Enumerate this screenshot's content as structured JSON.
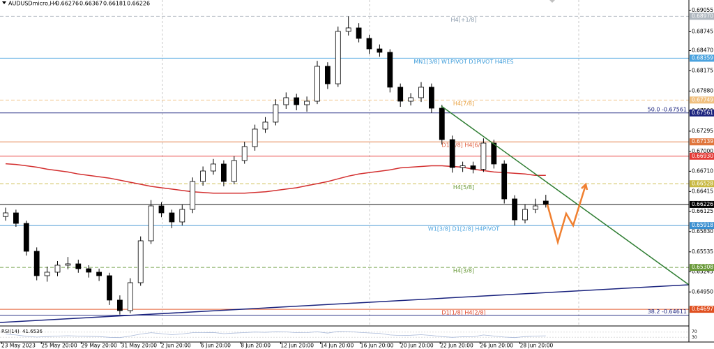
{
  "chart_data": {
    "type": "candlestick",
    "symbol": "AUDUSDmicro,H4",
    "ylim": [
      0.64464,
      0.69208
    ],
    "yticks": [
      0.69055,
      0.68745,
      {
        "value": 0.6847,
        "label": "0.68470"
      },
      0.68175,
      {
        "value": 0.6788,
        "label": "0.67880"
      },
      {
        "value": 0.6759,
        "label": "0.67590"
      },
      0.67295,
      {
        "value": 0.67,
        "label": "0.67000"
      },
      {
        "value": 0.6671,
        "label": "0.66710"
      },
      0.66415,
      0.66125,
      {
        "value": 0.6583,
        "label": "0.65830"
      },
      0.65535,
      0.65245,
      {
        "value": 0.6495,
        "label": "0.64950"
      }
    ],
    "x_labels": [
      "23 May 2023",
      "25 May 20:00",
      "29 May 20:00",
      "31 May 20:00",
      "2 Jun 20:00",
      "6 Jun 20:00",
      "8 Jun 20:00",
      "12 Jun 20:00",
      "14 Jun 20:00",
      "16 Jun 20:00",
      "20 Jun 20:00",
      "22 Jun 20:00",
      "26 Jun 20:00",
      "28 Jun 20:00"
    ],
    "open": [
      0.6605,
      0.66103,
      0.6595,
      0.65543,
      0.65187,
      0.65238,
      0.6534,
      0.6536,
      0.65289,
      0.65238,
      0.65187,
      0.64831,
      0.64678,
      0.65085,
      0.65696,
      0.66205,
      0.66103,
      0.65971,
      0.66154,
      0.66561,
      0.66714,
      0.66816,
      0.66561,
      0.66867,
      0.6707,
      0.67325,
      0.67427,
      0.67681,
      0.67783,
      0.67681,
      0.67732,
      0.68241,
      0.67986,
      0.6875,
      0.68801,
      0.68648,
      0.68495,
      0.68445,
      0.67936,
      0.67732,
      0.67783,
      0.67936,
      0.6763,
      0.67172,
      0.66765,
      0.6679,
      0.6674,
      0.67121,
      0.66816,
      0.66307,
      0.66001,
      0.66154,
      0.66276
    ],
    "high": [
      0.6618,
      0.6615,
      0.6599,
      0.656,
      0.6532,
      0.654,
      0.6546,
      0.6542,
      0.6534,
      0.6529,
      0.6523,
      0.649,
      0.6515,
      0.6576,
      0.6629,
      0.6626,
      0.6615,
      0.6622,
      0.6662,
      0.6678,
      0.6689,
      0.6687,
      0.6693,
      0.6714,
      0.6739,
      0.675,
      0.6776,
      0.6786,
      0.6784,
      0.678,
      0.6832,
      0.683,
      0.6882,
      0.6897,
      0.6887,
      0.687,
      0.6856,
      0.6849,
      0.6799,
      0.6785,
      0.6801,
      0.6799,
      0.6768,
      0.6723,
      0.6685,
      0.6685,
      0.6719,
      0.6717,
      0.6687,
      0.6636,
      0.6623,
      0.6631,
      0.66367
    ],
    "low": [
      0.6599,
      0.659,
      0.6548,
      0.6512,
      0.651,
      0.6518,
      0.6528,
      0.6523,
      0.6516,
      0.6511,
      0.6476,
      0.6462,
      0.6464,
      0.6504,
      0.6565,
      0.6604,
      0.6588,
      0.6592,
      0.661,
      0.665,
      0.6666,
      0.6649,
      0.6652,
      0.6682,
      0.6701,
      0.6727,
      0.6738,
      0.6762,
      0.676,
      0.6758,
      0.6769,
      0.6791,
      0.6794,
      0.6869,
      0.6859,
      0.6842,
      0.6838,
      0.6786,
      0.6765,
      0.6767,
      0.6772,
      0.6756,
      0.671,
      0.6669,
      0.667,
      0.6668,
      0.667,
      0.6675,
      0.6624,
      0.6592,
      0.6595,
      0.661,
      0.66181
    ],
    "close": [
      0.66103,
      0.6595,
      0.65543,
      0.65187,
      0.65238,
      0.6534,
      0.6536,
      0.65289,
      0.65238,
      0.65187,
      0.64831,
      0.64678,
      0.65085,
      0.65696,
      0.66205,
      0.66103,
      0.65971,
      0.66154,
      0.66561,
      0.66714,
      0.66816,
      0.66561,
      0.66867,
      0.6707,
      0.67325,
      0.67427,
      0.67681,
      0.67783,
      0.67681,
      0.67732,
      0.68241,
      0.67986,
      0.6875,
      0.68801,
      0.68648,
      0.68495,
      0.68445,
      0.67936,
      0.67732,
      0.67783,
      0.67936,
      0.6763,
      0.67172,
      0.66765,
      0.6679,
      0.6674,
      0.67121,
      0.66816,
      0.66307,
      0.66001,
      0.66154,
      0.66205,
      0.66226
    ],
    "ma": {
      "color": "#d32f2f",
      "values": [
        0.6682,
        0.6681,
        0.6679,
        0.6677,
        0.6674,
        0.6672,
        0.667,
        0.6667,
        0.6665,
        0.6663,
        0.6661,
        0.6658,
        0.6655,
        0.6652,
        0.6649,
        0.6647,
        0.6645,
        0.6643,
        0.6641,
        0.664,
        0.6639,
        0.6639,
        0.6639,
        0.6639,
        0.664,
        0.6641,
        0.6643,
        0.6645,
        0.6647,
        0.665,
        0.6653,
        0.6656,
        0.666,
        0.6664,
        0.6667,
        0.6669,
        0.6671,
        0.6673,
        0.6676,
        0.6677,
        0.6678,
        0.6679,
        0.6679,
        0.6678,
        0.6677,
        0.6674,
        0.6672,
        0.667,
        0.6669,
        0.6668,
        0.6667,
        0.6665,
        0.6665
      ]
    },
    "bull_color": "#ffffff",
    "bear_color": "#000000",
    "levels": [
      {
        "value": 0.6897,
        "label": "0.68970",
        "text": "H4[+1/8]",
        "color": "#b0b8c0",
        "text_color": "#8899aa",
        "dashed": true
      },
      {
        "value": 0.68359,
        "text": "MN1[3/8] W1PIVOT D1PIVOT H4RES",
        "color": "#4aa3df",
        "text_color": "#3a9ad9",
        "dashed": false
      },
      {
        "value": 0.67749,
        "text": "H4[7/8]",
        "color": "#f0c080",
        "text_color": "#e8a040",
        "dashed": true
      },
      {
        "value": 0.67561,
        "text": "50.0 -0.67561",
        "color": "#1a237e",
        "text_color": "#1a237e",
        "dashed": false,
        "text_align": "right"
      },
      {
        "value": 0.67139,
        "text": "D1[3/8] H4[6/8]",
        "color": "#e0763c",
        "text_color": "#e06040",
        "dashed": false
      },
      {
        "value": 0.6693,
        "label": "0.66930",
        "color": "#e53935",
        "dashed": false
      },
      {
        "value": 0.66528,
        "text": "H4[5/8]",
        "color": "#c8b840",
        "text_color": "#6a9a3a",
        "dashed": true
      },
      {
        "value": 0.66226,
        "color": "#000000",
        "dashed": false
      },
      {
        "value": 0.65918,
        "text": "W1[3/8] D1[2/8] H4PIVOT",
        "color": "#3a8fd0",
        "text_color": "#4aa3df",
        "dashed": false
      },
      {
        "value": 0.65308,
        "text": "H4[3/8]",
        "color": "#6a9a3a",
        "text_color": "#6a9a3a",
        "dashed": true
      },
      {
        "value": 0.64697,
        "text": "D1[1/8] H4[2/8]",
        "color": "#e05020",
        "text_color": "#e04020",
        "dashed": false
      },
      {
        "value": 0.64611,
        "text": "38.2 -0.64611",
        "color": "#1a237e",
        "text_color": "#1a237e",
        "dashed": false,
        "text_align": "right",
        "tag": false
      }
    ],
    "rsi_title": "RSI(14)",
    "rsi_ylim": [
      0,
      100
    ],
    "rsi_ticks": [
      70,
      30
    ],
    "rsi": [
      55,
      48,
      38,
      32,
      36,
      40,
      42,
      40,
      38,
      36,
      30,
      28,
      40,
      55,
      65,
      58,
      50,
      56,
      65,
      66,
      67,
      58,
      62,
      66,
      70,
      68,
      72,
      71,
      65,
      66,
      72,
      62,
      75,
      74,
      68,
      63,
      60,
      48,
      44,
      46,
      50,
      44,
      36,
      30,
      35,
      34,
      48,
      40,
      32,
      28,
      36,
      40,
      41.6536
    ]
  }
}
